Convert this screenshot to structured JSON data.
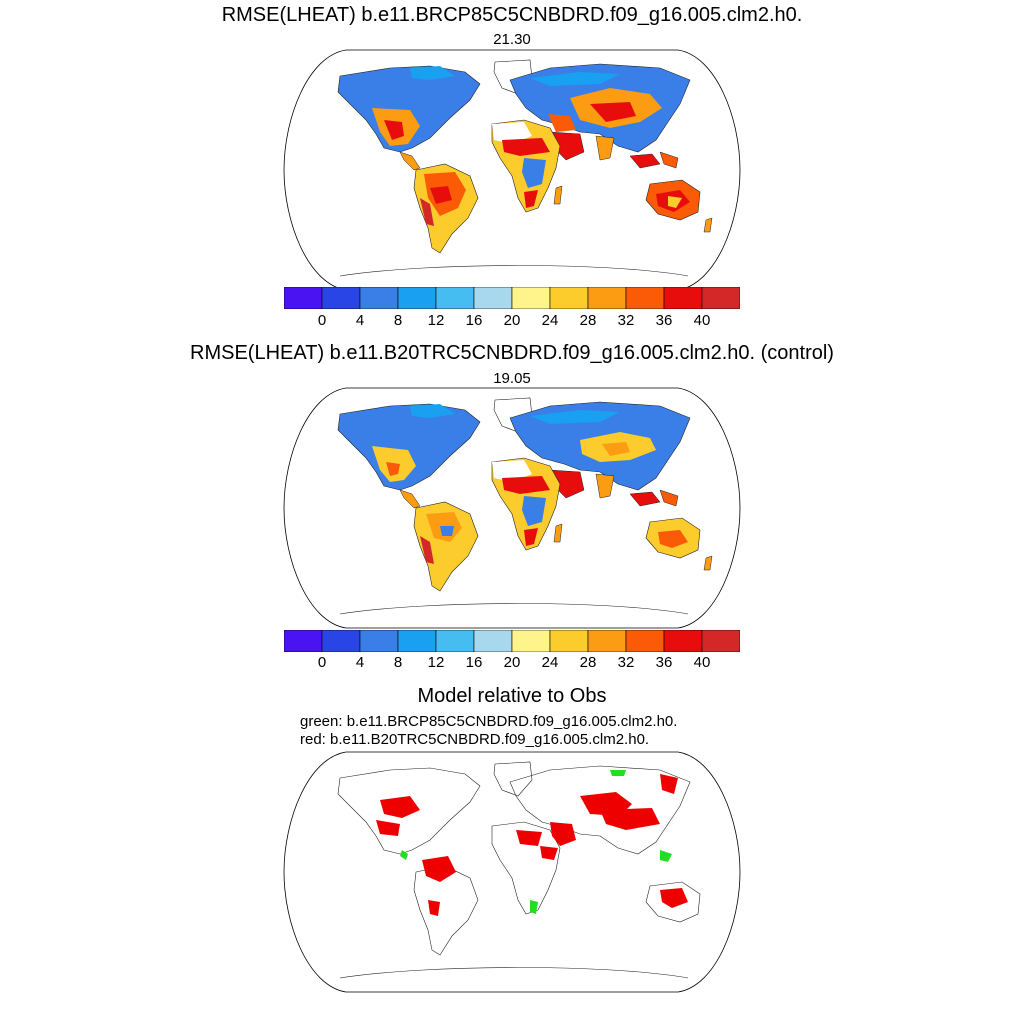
{
  "panels": [
    {
      "title": "RMSE(LHEAT) b.e11.BRCP85C5CNBDRD.f09_g16.005.clm2.h0.",
      "value": "21.30"
    },
    {
      "title": "RMSE(LHEAT) b.e11.B20TRC5CNBDRD.f09_g16.005.clm2.h0. (control)",
      "value": "19.05"
    }
  ],
  "colorbar": {
    "colors": [
      "#4a14f2",
      "#2a45e6",
      "#3a7ee8",
      "#1aa0f0",
      "#46bdf0",
      "#a8d8ee",
      "#fff48c",
      "#fbcc2c",
      "#fb9c12",
      "#fb5a06",
      "#e80d0d",
      "#d42828"
    ],
    "labels": [
      "0",
      "4",
      "8",
      "12",
      "16",
      "20",
      "24",
      "28",
      "32",
      "36",
      "40"
    ]
  },
  "comparison": {
    "title": "Model relative to Obs",
    "legend_green": "green: b.e11.BRCP85C5CNBDRD.f09_g16.005.clm2.h0.",
    "legend_red": "red: b.e11.B20TRC5CNBDRD.f09_g16.005.clm2.h0.",
    "green_color": "#22dd22",
    "red_color": "#ee0000"
  }
}
